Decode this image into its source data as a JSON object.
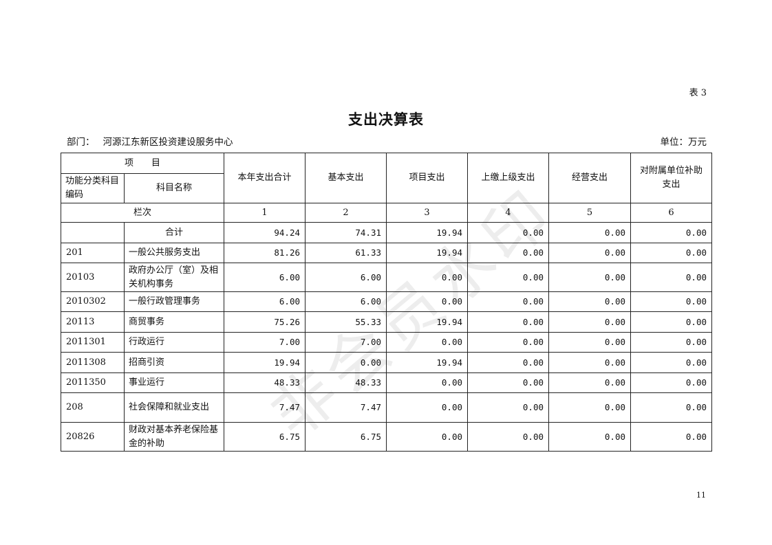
{
  "table_no": "表 3",
  "title": "支出决算表",
  "department_label": "部门：",
  "department": "河源江东新区投资建设服务中心",
  "unit": "单位：万元",
  "page_number": "11",
  "watermark": "非会员水印",
  "header": {
    "item": "项　　目",
    "code": "功能分类科目编码",
    "name": "科目名称",
    "columns": [
      "本年支出合计",
      "基本支出",
      "项目支出",
      "上缴上级支出",
      "经营支出",
      "对附属单位补助支出"
    ],
    "row_index_label": "栏次",
    "row_index": [
      "1",
      "2",
      "3",
      "4",
      "5",
      "6"
    ]
  },
  "rows": [
    {
      "code": "",
      "name": "合计",
      "values": [
        "94.24",
        "74.31",
        "19.94",
        "0.00",
        "0.00",
        "0.00"
      ]
    },
    {
      "code": "201",
      "name": "一般公共服务支出",
      "values": [
        "81.26",
        "61.33",
        "19.94",
        "0.00",
        "0.00",
        "0.00"
      ]
    },
    {
      "code": "20103",
      "name": "政府办公厅（室）及相关机构事务",
      "values": [
        "6.00",
        "6.00",
        "0.00",
        "0.00",
        "0.00",
        "0.00"
      ]
    },
    {
      "code": "2010302",
      "name": "一般行政管理事务",
      "values": [
        "6.00",
        "6.00",
        "0.00",
        "0.00",
        "0.00",
        "0.00"
      ]
    },
    {
      "code": "20113",
      "name": "商贸事务",
      "values": [
        "75.26",
        "55.33",
        "19.94",
        "0.00",
        "0.00",
        "0.00"
      ]
    },
    {
      "code": "2011301",
      "name": "行政运行",
      "values": [
        "7.00",
        "7.00",
        "0.00",
        "0.00",
        "0.00",
        "0.00"
      ]
    },
    {
      "code": "2011308",
      "name": "招商引资",
      "values": [
        "19.94",
        "0.00",
        "19.94",
        "0.00",
        "0.00",
        "0.00"
      ]
    },
    {
      "code": "2011350",
      "name": "事业运行",
      "values": [
        "48.33",
        "48.33",
        "0.00",
        "0.00",
        "0.00",
        "0.00"
      ]
    },
    {
      "code": "208",
      "name": "社会保障和就业支出",
      "values": [
        "7.47",
        "7.47",
        "0.00",
        "0.00",
        "0.00",
        "0.00"
      ]
    },
    {
      "code": "20826",
      "name": "财政对基本养老保险基金的补助",
      "values": [
        "6.75",
        "6.75",
        "0.00",
        "0.00",
        "0.00",
        "0.00"
      ]
    }
  ]
}
